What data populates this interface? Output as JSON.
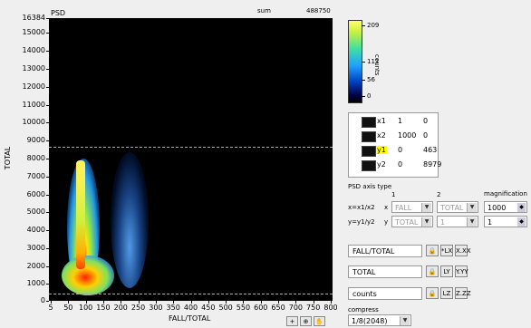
{
  "plot": {
    "title": "PSD",
    "sum_label": "sum",
    "sum_value": "488750",
    "ylabel": "TOTAL",
    "xlabel": "FALL/TOTAL",
    "yticks": [
      "16384",
      "15000",
      "14000",
      "13000",
      "12000",
      "11000",
      "10000",
      "9000",
      "8000",
      "7000",
      "6000",
      "5000",
      "4000",
      "3000",
      "2000",
      "1000",
      "0"
    ],
    "xticks": [
      "5",
      "50",
      "100",
      "150",
      "200",
      "250",
      "300",
      "350",
      "400",
      "450",
      "500",
      "550",
      "600",
      "650",
      "700",
      "750",
      "800"
    ]
  },
  "colorbar": {
    "label": "counts",
    "ticks": [
      "209",
      "111",
      "56",
      "0"
    ]
  },
  "cursors": [
    {
      "name": "x1",
      "a": "1",
      "b": "0"
    },
    {
      "name": "x2",
      "a": "1000",
      "b": "0"
    },
    {
      "name": "y1",
      "a": "0",
      "b": "463"
    },
    {
      "name": "y2",
      "a": "0",
      "b": "8979"
    }
  ],
  "axis_type": {
    "heading": "PSD axis type",
    "col1": "1",
    "col2": "2",
    "magnification": "magnification",
    "x_row_label": "x=x1/x2",
    "x_axis_letter": "x",
    "x_sel1": "FALL",
    "x_sel2": "TOTAL",
    "x_mag": "1000",
    "y_row_label": "y=y1/y2",
    "y_axis_letter": "y",
    "y_sel1": "TOTAL",
    "y_sel2": "1",
    "y_mag": "1"
  },
  "axis_names": {
    "x_name": "FALL/TOTAL",
    "y_name": "TOTAL",
    "z_name": "counts",
    "x_btn1": "*LX",
    "x_btn2": "X.XX",
    "y_btn1": "LY",
    "y_btn2": "Y.YY",
    "z_btn1": "LZ",
    "z_btn2": "Z.ZZ"
  },
  "compress": {
    "label": "compress",
    "value": "1/8(2048)"
  }
}
